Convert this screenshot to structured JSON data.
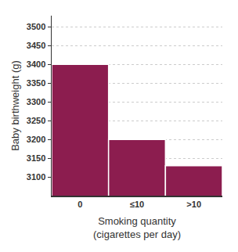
{
  "chart_data": {
    "type": "bar",
    "x_label": "Smoking quantity\n(cigarettes per day)",
    "y_label": "Baby birthweight (g)",
    "categories": [
      "0",
      "≤10",
      ">10"
    ],
    "values": [
      3400,
      3200,
      3130
    ],
    "color": "#8c1d4f",
    "ylim": [
      3050,
      3530
    ],
    "yticks": [
      3100,
      3150,
      3200,
      3250,
      3300,
      3350,
      3400,
      3450,
      3500
    ],
    "grid": true
  }
}
